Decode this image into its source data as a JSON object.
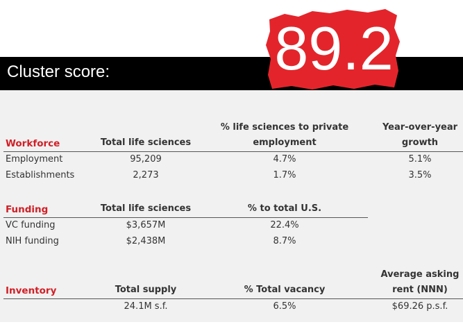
{
  "header": {
    "label": "Cluster score:",
    "score": "89.2"
  },
  "sections": [
    {
      "title": "Workforce",
      "columns": [
        "Total life sciences",
        "% life sciences to private employment",
        "Year-over-year growth"
      ],
      "rows": [
        [
          "Employment",
          "95,209",
          "4.7%",
          "5.1%"
        ],
        [
          "Establishments",
          "2,273",
          "1.7%",
          "3.5%"
        ]
      ]
    },
    {
      "title": "Funding",
      "columns": [
        "Total life sciences",
        "% to total U.S."
      ],
      "rows": [
        [
          "VC funding",
          "$3,657M",
          "22.4%"
        ],
        [
          "NIH funding",
          "$2,438M",
          "8.7%"
        ]
      ]
    },
    {
      "title": "Inventory",
      "columns": [
        "Total supply",
        "% Total vacancy",
        "Average asking rent (NNN)"
      ],
      "rows": [
        [
          "",
          "24.1M s.f.",
          "6.5%",
          "$69.26 p.s.f."
        ]
      ]
    }
  ]
}
